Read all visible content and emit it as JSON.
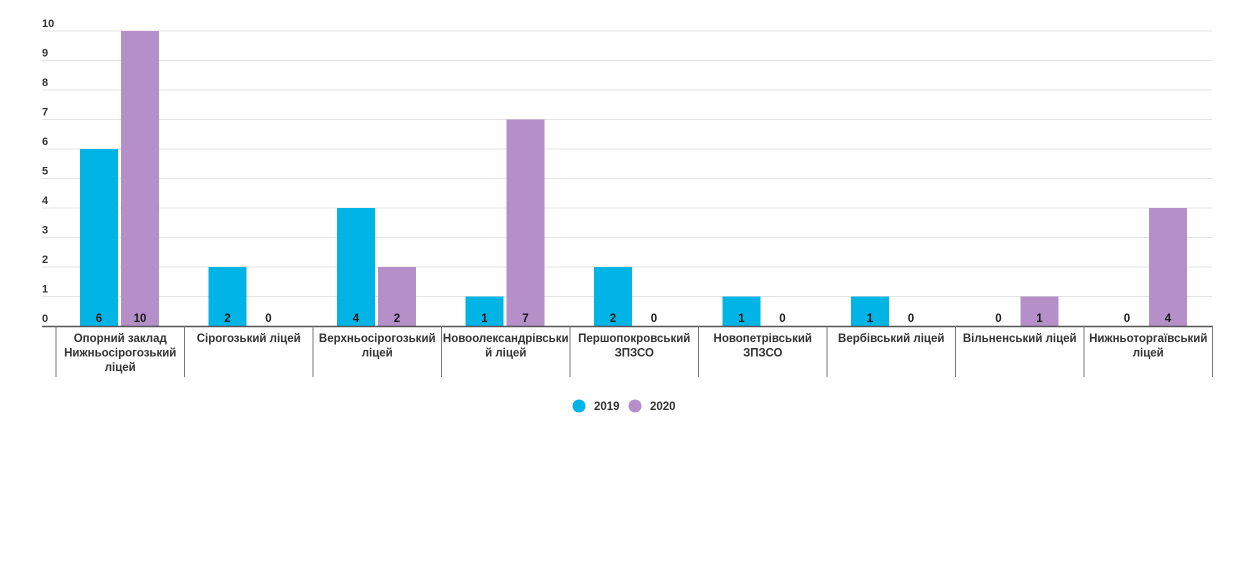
{
  "chart_data": {
    "type": "bar",
    "title": "",
    "xlabel": "",
    "ylabel": "",
    "ylim": [
      0,
      10
    ],
    "yticks": [
      0,
      1,
      2,
      3,
      4,
      5,
      6,
      7,
      8,
      9,
      10
    ],
    "grid": true,
    "legend_position": "bottom-center",
    "categories": [
      [
        "Опорний заклад",
        "Нижньосірогозький",
        "ліцей"
      ],
      [
        "Сірогозький ліцей"
      ],
      [
        "Верхньосірогозький",
        "ліцей"
      ],
      [
        "Новоолександрівськи",
        "й ліцей"
      ],
      [
        "Першопокровський",
        "ЗПЗСО"
      ],
      [
        "Новопетрівський",
        "ЗПЗСО"
      ],
      [
        "Вербівський ліцей"
      ],
      [
        "Вільненський ліцей"
      ],
      [
        "Нижньоторгаївський",
        "ліцей"
      ]
    ],
    "series": [
      {
        "name": "2019",
        "color": "#00B4E6",
        "values": [
          6,
          2,
          4,
          1,
          2,
          1,
          1,
          0,
          0
        ]
      },
      {
        "name": "2020",
        "color": "#B48FC8",
        "values": [
          10,
          0,
          2,
          7,
          0,
          0,
          0,
          1,
          4
        ]
      }
    ]
  }
}
